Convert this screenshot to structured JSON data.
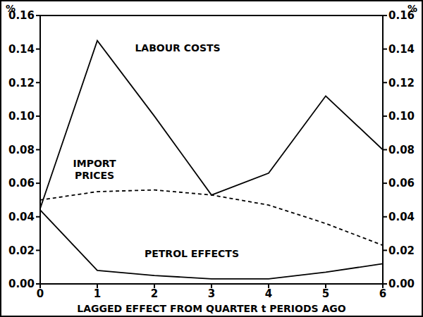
{
  "chart_data": {
    "type": "line",
    "x_label": "LAGGED EFFECT FROM QUARTER t PERIODS AGO",
    "y_label": "%",
    "y2_label": "%",
    "x": [
      0,
      1,
      2,
      3,
      4,
      5,
      6
    ],
    "xlim": [
      0,
      6
    ],
    "xticks": [
      0,
      1,
      2,
      3,
      4,
      5,
      6
    ],
    "ylim": [
      0,
      0.16
    ],
    "yticks": [
      {
        "value": 0,
        "label": "0.00"
      },
      {
        "value": 0.02,
        "label": "0.02"
      },
      {
        "value": 0.04,
        "label": "0.04"
      },
      {
        "value": 0.06,
        "label": "0.06"
      },
      {
        "value": 0.08,
        "label": "0.08"
      },
      {
        "value": 0.1,
        "label": "0.10"
      },
      {
        "value": 0.12,
        "label": "0.12"
      },
      {
        "value": 0.14,
        "label": "0.14"
      },
      {
        "value": 0.16,
        "label": "0.16"
      }
    ],
    "y2lim": [
      0,
      0.16
    ],
    "y2ticks": [
      {
        "value": 0,
        "label": "0.00"
      },
      {
        "value": 0.02,
        "label": "0.02"
      },
      {
        "value": 0.04,
        "label": "0.04"
      },
      {
        "value": 0.06,
        "label": "0.06"
      },
      {
        "value": 0.08,
        "label": "0.08"
      },
      {
        "value": 0.1,
        "label": "0.10"
      },
      {
        "value": 0.12,
        "label": "0.12"
      },
      {
        "value": 0.14,
        "label": "0.14"
      },
      {
        "value": 0.16,
        "label": "0.16"
      }
    ],
    "grid": false,
    "series": [
      {
        "name": "LABOUR COSTS",
        "color": "#000000",
        "line_style": "solid",
        "values": [
          0.045,
          0.145,
          0.1,
          0.053,
          0.066,
          0.112,
          0.08
        ]
      },
      {
        "name": "IMPORT PRICES",
        "color": "#000000",
        "line_style": "dashed",
        "values": [
          0.05,
          0.055,
          0.056,
          0.053,
          0.047,
          0.036,
          0.023
        ]
      },
      {
        "name": "PETROL EFFECTS",
        "color": "#000000",
        "line_style": "solid",
        "values": [
          0.044,
          0.008,
          0.005,
          0.003,
          0.003,
          0.007,
          0.012
        ]
      }
    ]
  }
}
